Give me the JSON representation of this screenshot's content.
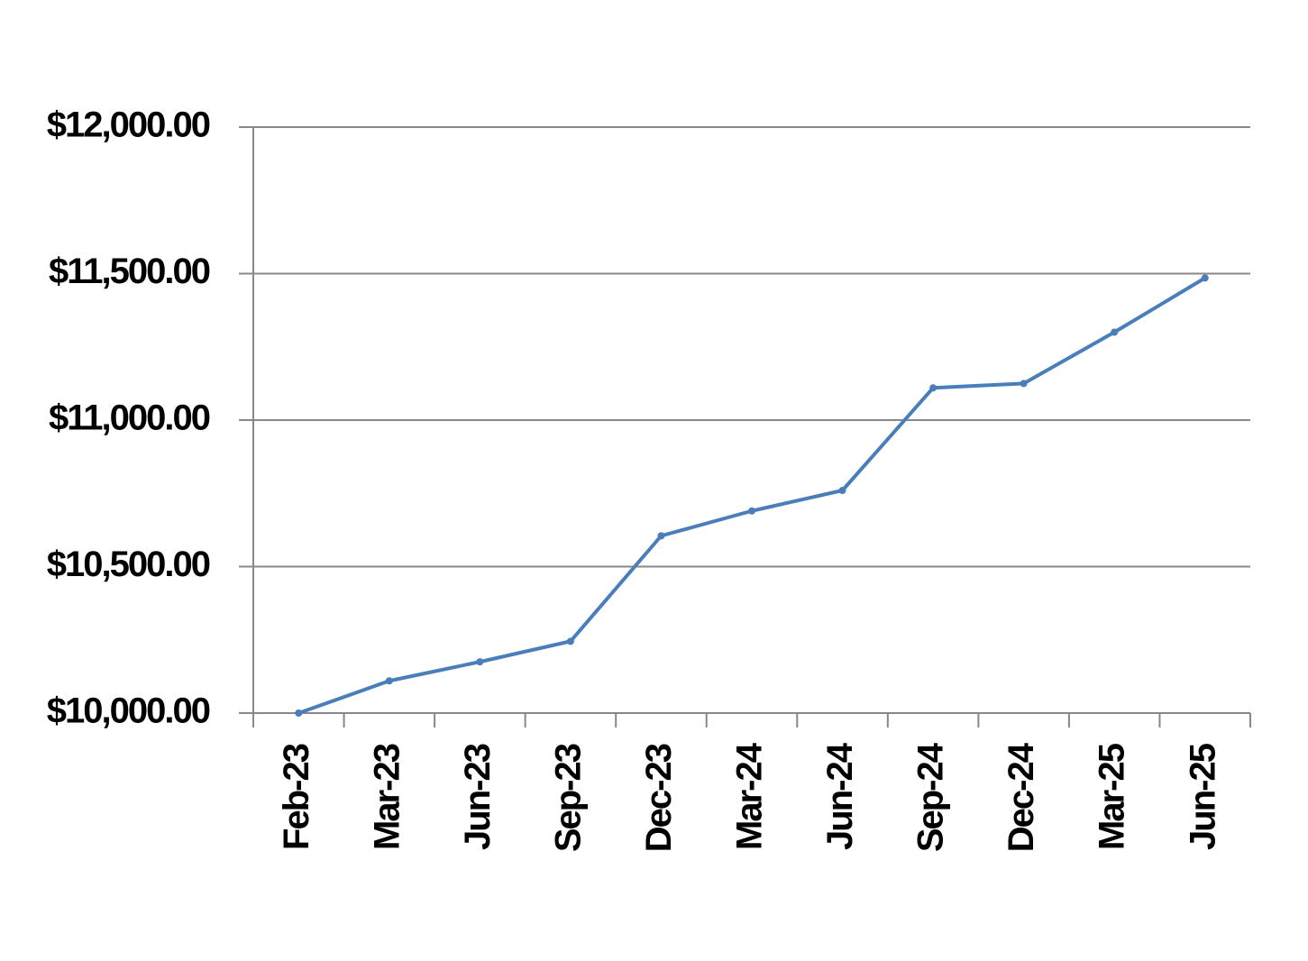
{
  "chart_data": {
    "type": "line",
    "categories": [
      "Feb-23",
      "Mar-23",
      "Jun-23",
      "Sep-23",
      "Dec-23",
      "Mar-24",
      "Jun-24",
      "Sep-24",
      "Dec-24",
      "Mar-25",
      "Jun-25"
    ],
    "series": [
      {
        "color": "#4a7ebb",
        "values": [
          10000,
          10110,
          10175,
          10245,
          10605,
          10690,
          10760,
          11110,
          11125,
          11300,
          11485
        ]
      }
    ],
    "ylim": [
      10000,
      12000
    ],
    "yticks": [
      {
        "value": 10000,
        "label": "$10,000.00"
      },
      {
        "value": 10500,
        "label": "$10,500.00"
      },
      {
        "value": 11000,
        "label": "$11,000.00"
      },
      {
        "value": 11500,
        "label": "$11,500.00"
      },
      {
        "value": 12000,
        "label": "$12,000.00"
      }
    ],
    "grid": true
  }
}
